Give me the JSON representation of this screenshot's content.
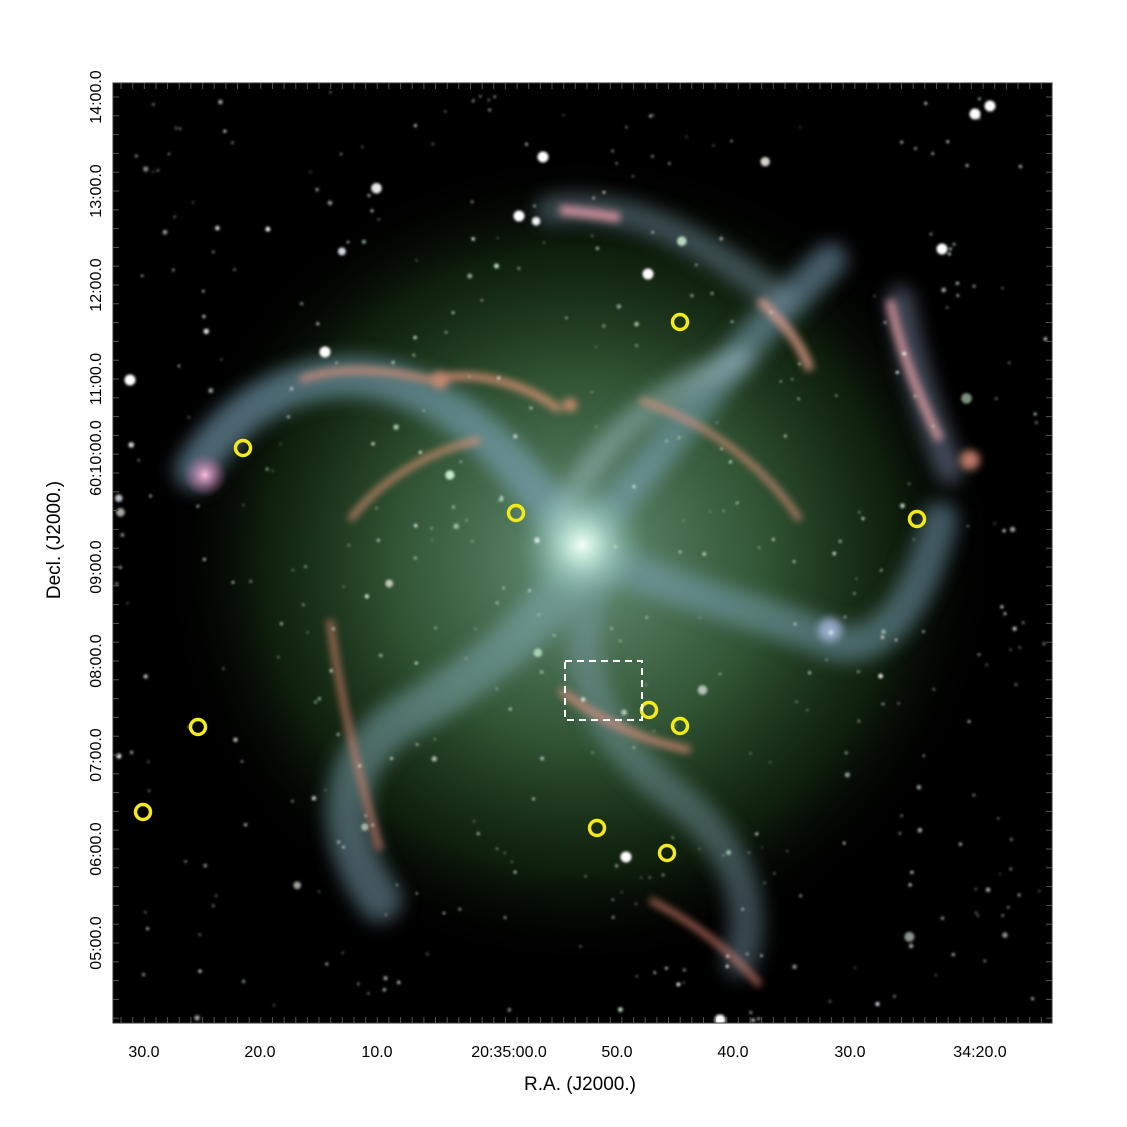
{
  "figure": {
    "xlabel": "R.A. (J2000.)",
    "ylabel": "Decl. (J2000.)",
    "x_ticks": [
      "30.0",
      "20.0",
      "10.0",
      "20:35:00.0",
      "50.0",
      "40.0",
      "30.0",
      "34:20.0"
    ],
    "y_ticks": [
      "05:00.0",
      "06:00.0",
      "07:00.0",
      "08:00.0",
      "09:00.0",
      "60:10:00.0",
      "11:00.0",
      "12:00.0",
      "13:00.0",
      "14:00.0"
    ],
    "colors": {
      "marker": "#f2ea1a",
      "box": "#ffffff",
      "background": "#000000",
      "galaxy_core": "#d8f0e0",
      "hii_regions": "#e89a7a",
      "arms": "#7fa8b8"
    },
    "markers": [
      {
        "ra": "20:34:44.5",
        "dec": "60:11:34"
      },
      {
        "ra": "20:35:22.0",
        "dec": "60:10:08"
      },
      {
        "ra": "20:34:56.5",
        "dec": "60:09:29"
      },
      {
        "ra": "20:34:24.0",
        "dec": "60:09:26"
      },
      {
        "ra": "20:34:46.5",
        "dec": "60:07:23"
      },
      {
        "ra": "20:34:44.5",
        "dec": "60:07:13"
      },
      {
        "ra": "20:35:25.5",
        "dec": "60:07:13"
      },
      {
        "ra": "20:35:30.0",
        "dec": "60:06:21"
      },
      {
        "ra": "20:34:50.0",
        "dec": "60:06:11"
      },
      {
        "ra": "20:34:45.5",
        "dec": "60:05:55"
      }
    ],
    "box_region": {
      "ra_range": [
        "20:34:53.0",
        "20:34:47.5"
      ],
      "dec_range": [
        "60:07:20",
        "60:07:58"
      ]
    }
  }
}
